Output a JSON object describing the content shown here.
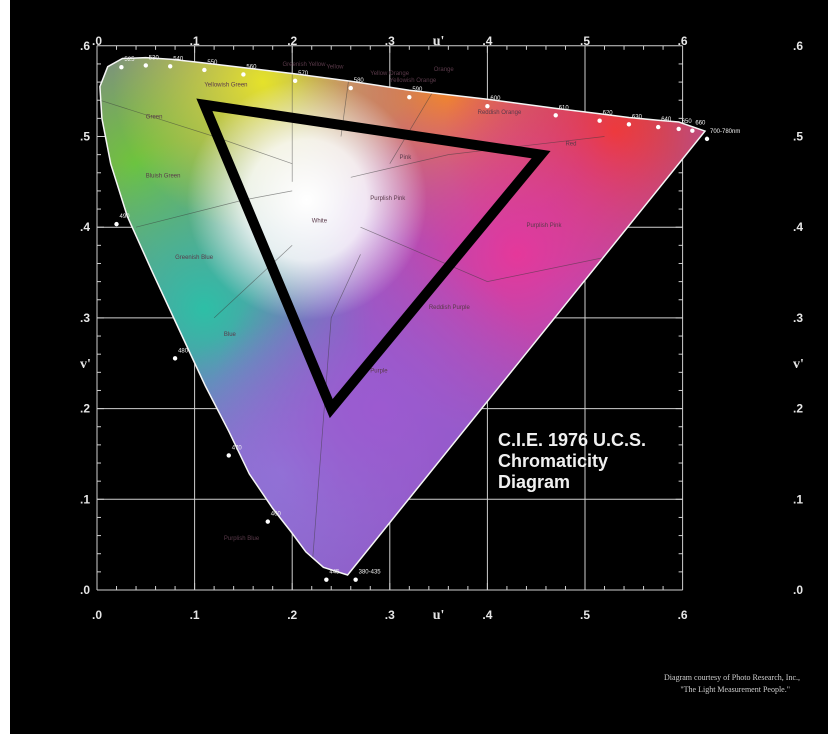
{
  "diagram": {
    "title_lines": [
      "C.I.E. 1976 U.C.S.",
      "Chromaticity",
      "Diagram"
    ],
    "credit_lines": [
      "Diagram courtesy of Photo Research, Inc.,",
      "\"The Light Measurement People.\""
    ],
    "axis_x_name": "u'",
    "axis_y_name": "v'",
    "x_ticks": [
      ".0",
      ".1",
      ".2",
      ".3",
      ".4",
      ".5",
      ".6"
    ],
    "y_ticks": [
      ".0",
      ".1",
      ".2",
      ".3",
      ".4",
      ".5",
      ".6"
    ],
    "wavelength_labels": [
      {
        "text": "525",
        "u": 0.025,
        "v": 0.583
      },
      {
        "text": "530",
        "u": 0.05,
        "v": 0.585
      },
      {
        "text": "540",
        "u": 0.075,
        "v": 0.584
      },
      {
        "text": "550",
        "u": 0.11,
        "v": 0.58
      },
      {
        "text": "560",
        "u": 0.15,
        "v": 0.575
      },
      {
        "text": "570",
        "u": 0.203,
        "v": 0.568
      },
      {
        "text": "580",
        "u": 0.26,
        "v": 0.56
      },
      {
        "text": "590",
        "u": 0.32,
        "v": 0.55
      },
      {
        "text": "600",
        "u": 0.4,
        "v": 0.54
      },
      {
        "text": "610",
        "u": 0.47,
        "v": 0.53
      },
      {
        "text": "620",
        "u": 0.515,
        "v": 0.524
      },
      {
        "text": "630",
        "u": 0.545,
        "v": 0.52
      },
      {
        "text": "640",
        "u": 0.575,
        "v": 0.517
      },
      {
        "text": "650",
        "u": 0.596,
        "v": 0.515
      },
      {
        "text": "660",
        "u": 0.61,
        "v": 0.513
      },
      {
        "text": "700-780nm",
        "u": 0.625,
        "v": 0.504
      },
      {
        "text": "490",
        "u": 0.02,
        "v": 0.41
      },
      {
        "text": "480",
        "u": 0.08,
        "v": 0.262
      },
      {
        "text": "470",
        "u": 0.135,
        "v": 0.155
      },
      {
        "text": "460",
        "u": 0.175,
        "v": 0.082
      },
      {
        "text": "445",
        "u": 0.235,
        "v": 0.018
      },
      {
        "text": "380-435",
        "u": 0.265,
        "v": 0.018
      }
    ],
    "region_labels": [
      {
        "text": "Green",
        "u": 0.05,
        "v": 0.52
      },
      {
        "text": "Yellowish Green",
        "u": 0.11,
        "v": 0.555
      },
      {
        "text": "Greenish Yellow",
        "u": 0.19,
        "v": 0.578
      },
      {
        "text": "Yellow",
        "u": 0.235,
        "v": 0.575
      },
      {
        "text": "Yellow Orange",
        "u": 0.28,
        "v": 0.568
      },
      {
        "text": "Orange",
        "u": 0.345,
        "v": 0.572
      },
      {
        "text": "Yellowish Orange",
        "u": 0.3,
        "v": 0.56
      },
      {
        "text": "Reddish Orange",
        "u": 0.39,
        "v": 0.525
      },
      {
        "text": "Red",
        "u": 0.48,
        "v": 0.49
      },
      {
        "text": "Bluish Green",
        "u": 0.05,
        "v": 0.455
      },
      {
        "text": "Greenish Blue",
        "u": 0.08,
        "v": 0.365
      },
      {
        "text": "Blue",
        "u": 0.13,
        "v": 0.28
      },
      {
        "text": "White",
        "u": 0.22,
        "v": 0.405
      },
      {
        "text": "Pink",
        "u": 0.31,
        "v": 0.475
      },
      {
        "text": "Purplish Pink",
        "u": 0.28,
        "v": 0.43
      },
      {
        "text": "Purplish Pink",
        "u": 0.44,
        "v": 0.4
      },
      {
        "text": "Reddish Purple",
        "u": 0.34,
        "v": 0.31
      },
      {
        "text": "Purple",
        "u": 0.28,
        "v": 0.24
      },
      {
        "text": "Purplish Blue",
        "u": 0.13,
        "v": 0.055
      }
    ],
    "triangle_vertices": [
      {
        "u": 0.11,
        "v": 0.535
      },
      {
        "u": 0.455,
        "v": 0.48
      },
      {
        "u": 0.24,
        "v": 0.2
      }
    ],
    "colors": {
      "background": "#000000",
      "grid": "#cfcfcf",
      "triangle": "#000000"
    }
  }
}
